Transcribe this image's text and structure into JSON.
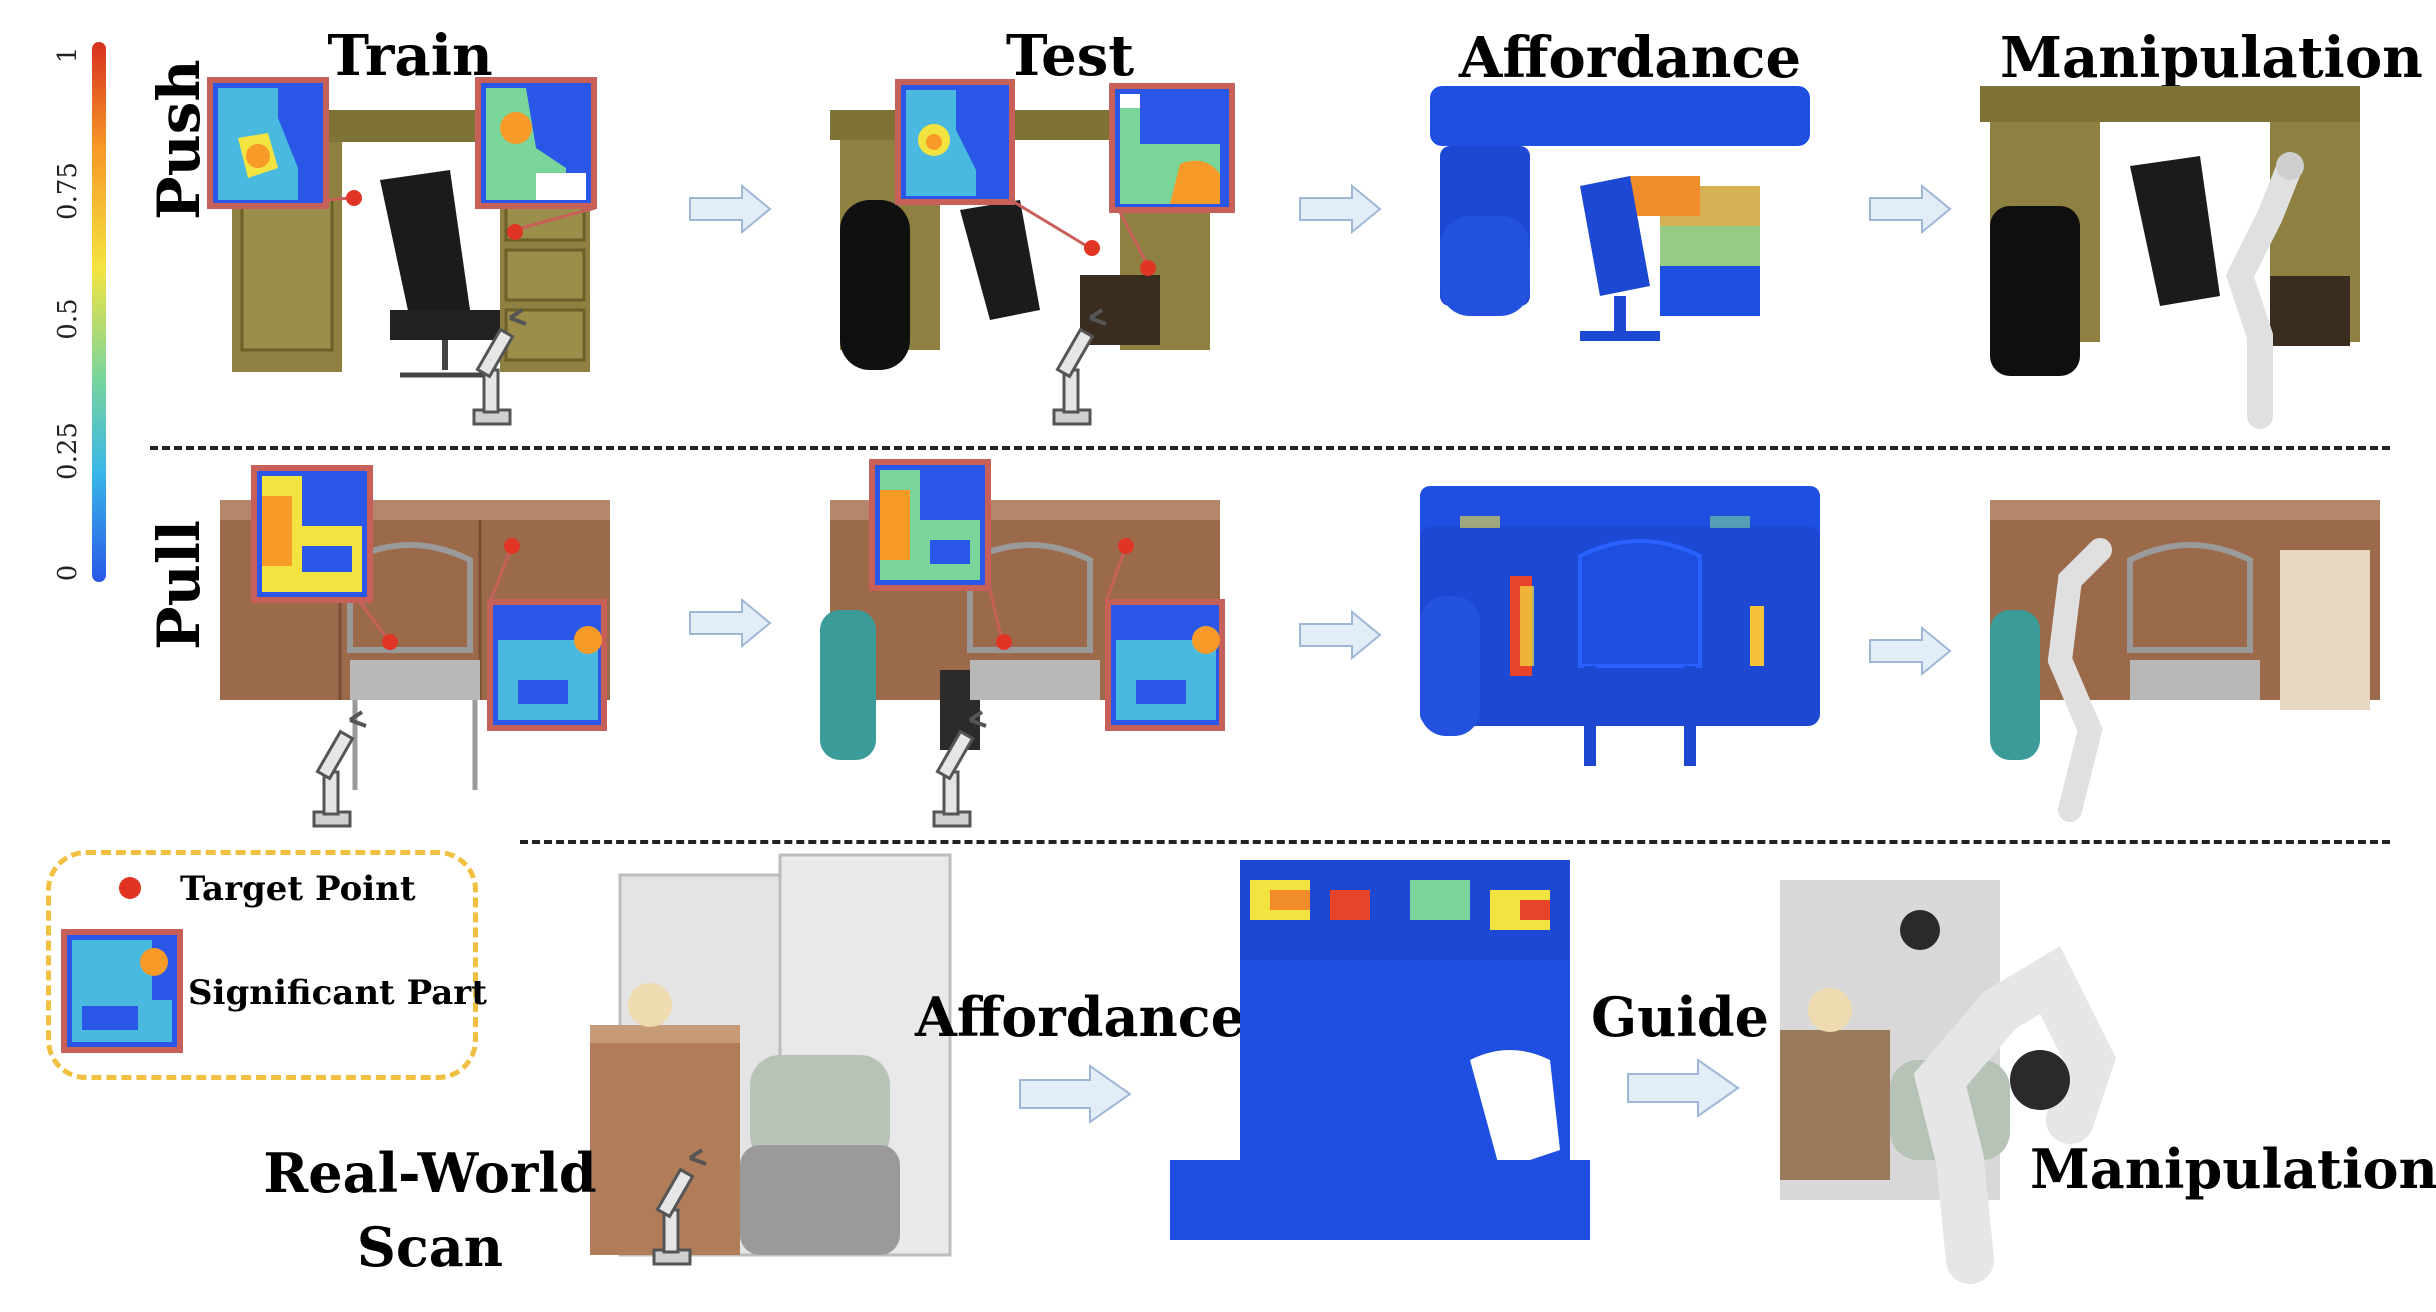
{
  "colorbar": {
    "ticks": [
      "1",
      "0.75",
      "0.5",
      "0.25",
      "0"
    ],
    "colors": [
      "#d7301f",
      "#f79a27",
      "#f3e340",
      "#7ad59b",
      "#38b6e8",
      "#2a57e8"
    ]
  },
  "columns": {
    "train": "Train",
    "test": "Test",
    "affordance": "Affordance",
    "manipulation": "Manipulation"
  },
  "rows": {
    "push": "Push",
    "pull": "Pull"
  },
  "legend": {
    "target_point": "Target Point",
    "significant_part": "Significant Part"
  },
  "bottom": {
    "real_world_scan_line1": "Real-World",
    "real_world_scan_line2": "Scan",
    "affordance": "Affordance",
    "guide": "Guide",
    "manipulation": "Manipulation"
  },
  "palette": {
    "affordance_blue": "#1f4fe0",
    "desk_olive": "#8a7a3a",
    "cabinet_brown": "#9a6a4a",
    "highlight_red": "#e03525",
    "box_border": "#c8605a",
    "arrow_fill": "#e3edf8",
    "arrow_stroke": "#9fb7d6",
    "legend_border": "#f1c040"
  }
}
